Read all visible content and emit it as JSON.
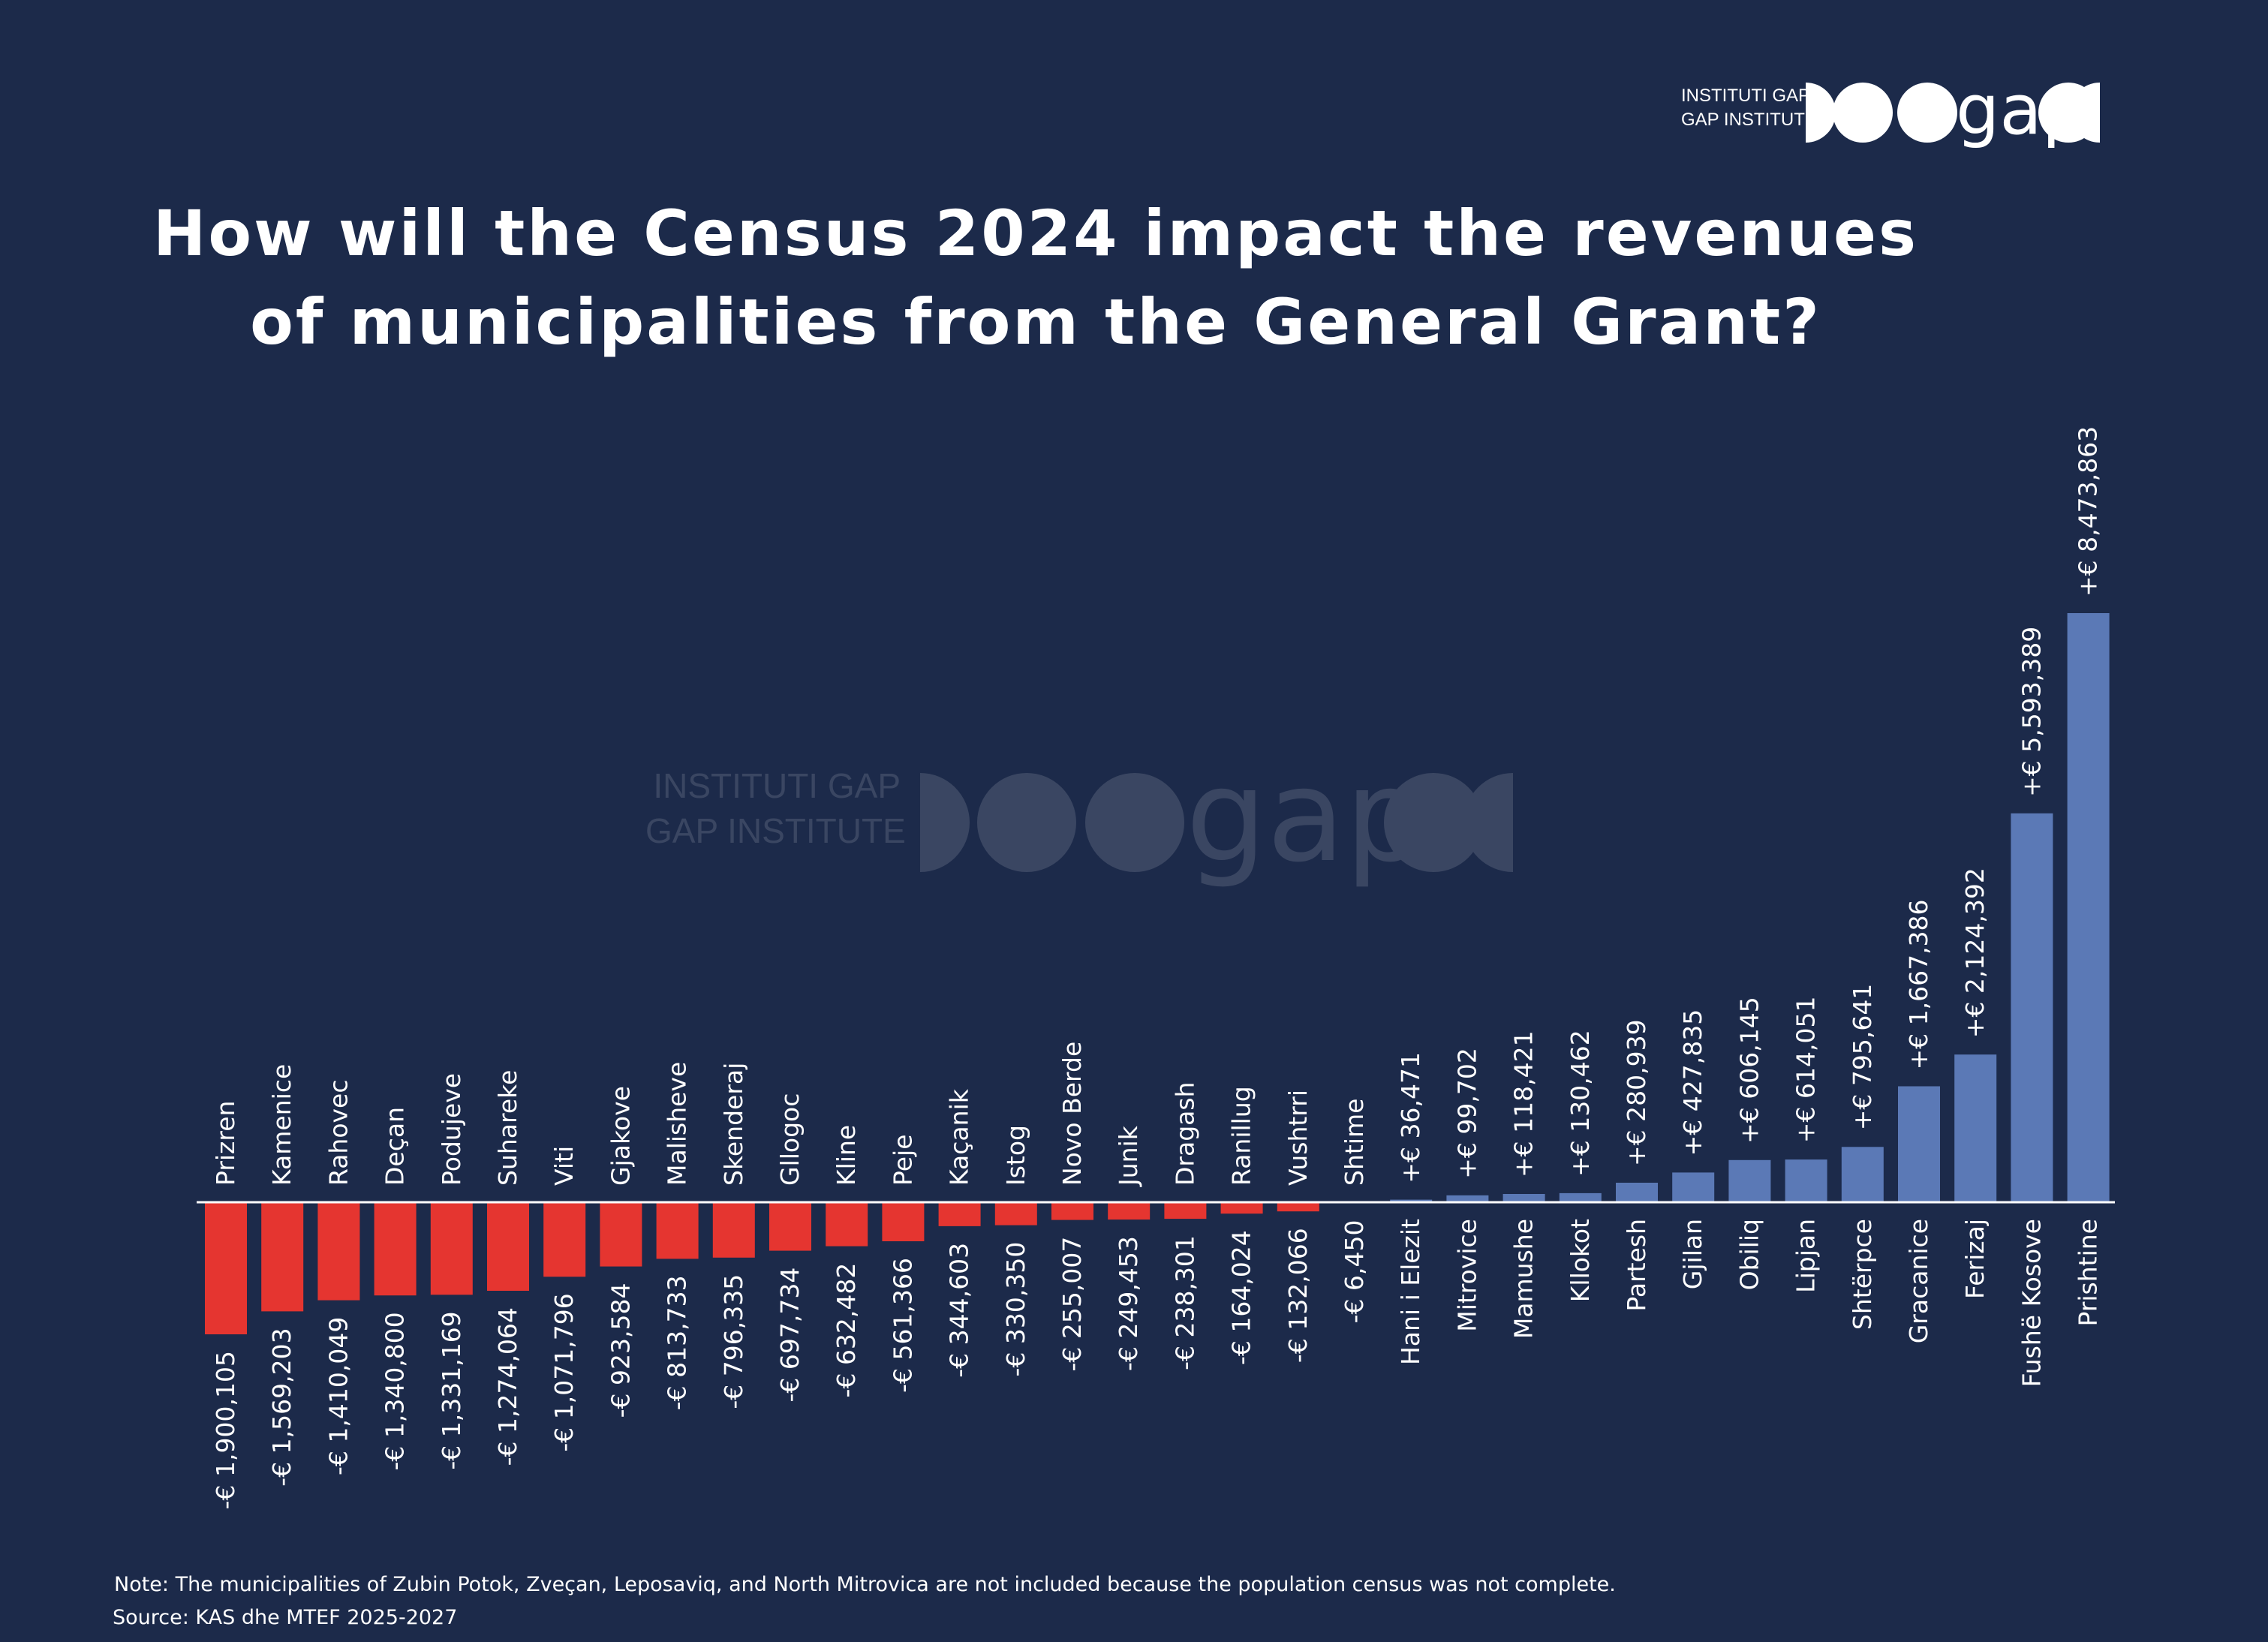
{
  "logo": {
    "line1": "INSTITUTI GAP",
    "line2": "GAP INSTITUTE",
    "wordmark": "gap"
  },
  "title_line1": "How will the Census 2024 impact the revenues",
  "title_line2": "of municipalities from the General Grant?",
  "note": "Note: The municipalities of Zubin Potok, Zveçan, Leposaviq, and North Mitrovica are not included because the population census was not complete.",
  "source": "Source: KAS dhe MTEF 2025-2027",
  "colors": {
    "background": "#1c2a4a",
    "negative": "#e53530",
    "positive": "#5b79b6",
    "text": "#ffffff"
  },
  "chart_data": {
    "type": "bar",
    "categories": [
      "Prizren",
      "Kamenice",
      "Rahovec",
      "Deçan",
      "Podujeve",
      "Suhareke",
      "Viti",
      "Gjakove",
      "Malisheve",
      "Skenderaj",
      "Gllogoc",
      "Kline",
      "Peje",
      "Kaçanik",
      "Istog",
      "Novo Berde",
      "Junik",
      "Dragash",
      "Ranillug",
      "Vushtrri",
      "Shtime",
      "Hani i Elezit",
      "Mitrovice",
      "Mamushe",
      "Kllokot",
      "Partesh",
      "Gjilan",
      "Obiliq",
      "Lipjan",
      "Shtërpce",
      "Gracanice",
      "Ferizaj",
      "Fushë Kosove",
      "Prishtine"
    ],
    "values": [
      -1900105,
      -1569203,
      -1410049,
      -1340800,
      -1331169,
      -1274064,
      -1071796,
      -923584,
      -813733,
      -796335,
      -697734,
      -632482,
      -561366,
      -344603,
      -330350,
      -255007,
      -249453,
      -238301,
      -164024,
      -132066,
      -6450,
      36471,
      99702,
      118421,
      130462,
      280939,
      427835,
      606145,
      614051,
      795641,
      1667386,
      2124392,
      5593389,
      8473863
    ],
    "labels": [
      "-€ 1,900,105",
      "-€ 1,569,203",
      "-€ 1,410,049",
      "-€ 1,340,800",
      "-€ 1,331,169",
      "-€ 1,274,064",
      "-€ 1,071,796",
      "-€ 923,584",
      "-€ 813,733",
      "-€ 796,335",
      "-€ 697,734",
      "-€ 632,482",
      "-€ 561,366",
      "-€ 344,603",
      "-€ 330,350",
      "-€ 255,007",
      "-€ 249,453",
      "-€ 238,301",
      "-€ 164,024",
      "-€ 132,066",
      "-€ 6,450",
      "+€ 36,471",
      "+€ 99,702",
      "+€ 118,421",
      "+€ 130,462",
      "+€ 280,939",
      "+€ 427,835",
      "+€ 606,145",
      "+€ 614,051",
      "+€ 795,641",
      "+€ 1,667,386",
      "+€ 2,124,392",
      "+€ 5,593,389",
      "+€ 8,473,863"
    ],
    "title": "How will the Census 2024 impact the revenues of municipalities from the General Grant?",
    "xlabel": "",
    "ylabel": "",
    "grid": false,
    "legend": "none"
  }
}
